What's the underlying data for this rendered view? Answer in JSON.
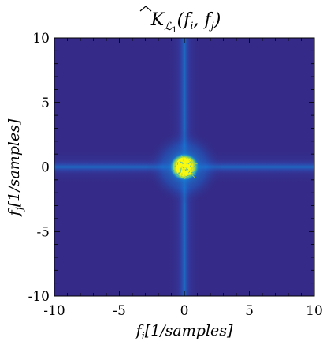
{
  "chart_data": {
    "type": "heatmap",
    "title": "K̂_{L1}(f_i, f_j)",
    "title_parts": {
      "symbol": "K",
      "subscript": "ℒ",
      "subscript2": "1",
      "args": "(f",
      "arg1_sub": "i",
      "sep": ", f",
      "arg2_sub": "j",
      "close": ")"
    },
    "xlabel": {
      "var": "f",
      "sub": "i",
      "unit": "[1/samples]"
    },
    "ylabel": {
      "var": "f",
      "sub": "j",
      "unit": "[1/samples]"
    },
    "xlim": [
      -10,
      10
    ],
    "ylim": [
      -10,
      10
    ],
    "x_ticks": [
      "-10",
      "-5",
      "0",
      "5",
      "10"
    ],
    "y_ticks": [
      "-10",
      "-5",
      "0",
      "5",
      "10"
    ],
    "x_tick_values": [
      -10,
      -5,
      0,
      5,
      10
    ],
    "y_tick_values": [
      -10,
      -5,
      0,
      5,
      10
    ],
    "minor_tick_step": 1,
    "colormap": "parula",
    "colors": {
      "background": "#352a87",
      "mid": "#0f5cdd",
      "high": "#10b4d3",
      "peak": "#f9fb0e"
    },
    "peak_center": [
      0,
      0
    ],
    "peak_radius": 0.7,
    "cross_lines": [
      0,
      0
    ],
    "grid": false,
    "legend": "none"
  }
}
